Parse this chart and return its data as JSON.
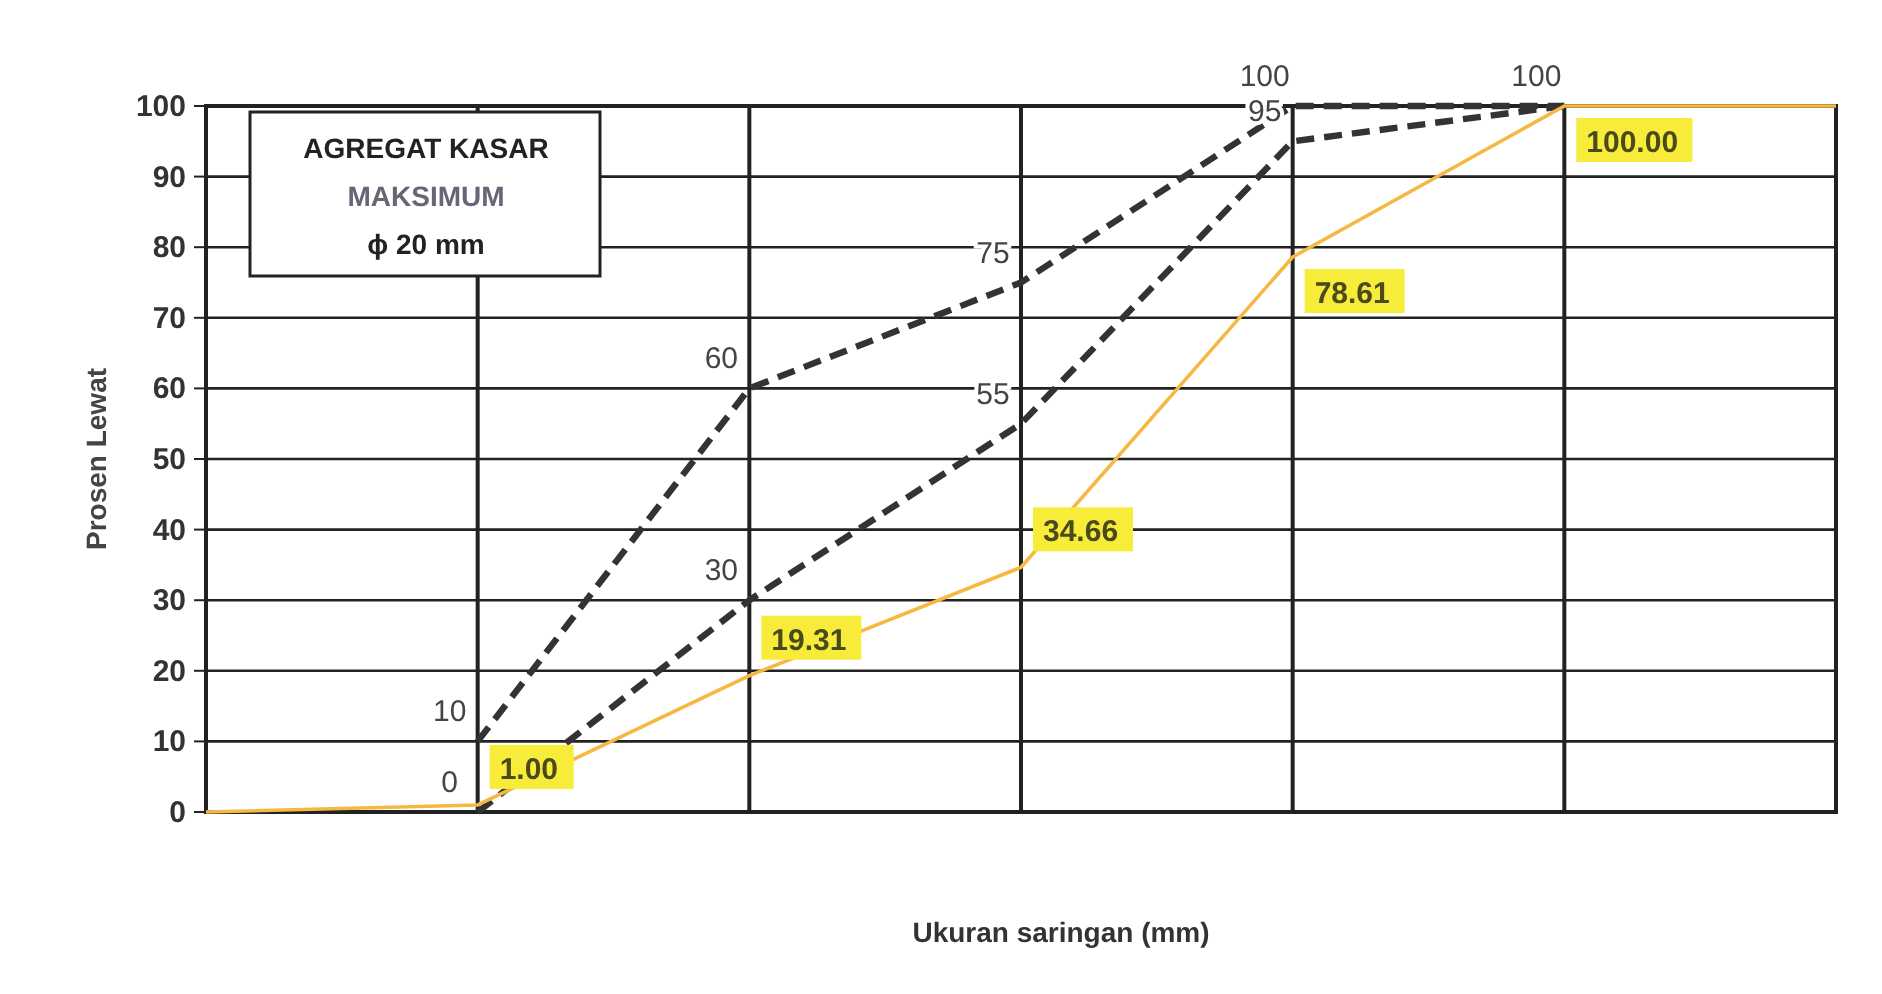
{
  "chart_data": {
    "type": "line",
    "xlabel": "Ukuran saringan (mm)",
    "ylabel": "Prosen Lewat",
    "annotations": [
      "AGREGAT KASAR",
      "MAKSIMUM",
      "ϕ 20 mm"
    ],
    "categories": [
      null,
      null,
      null,
      null,
      null,
      null,
      null
    ],
    "ylim": [
      0,
      100
    ],
    "yticks": [
      0,
      10,
      20,
      30,
      40,
      50,
      60,
      70,
      80,
      90,
      100
    ],
    "grid": true,
    "tick_labels": "y",
    "marker": "none",
    "series": [
      {
        "color": "#333333",
        "line_style": "dashed",
        "values": [
          null,
          10,
          60,
          75,
          100,
          100,
          null
        ],
        "value_labels": [
          null,
          "10",
          "60",
          "75",
          "100",
          "100",
          null
        ]
      },
      {
        "color": "#333333",
        "line_style": "dashed",
        "values": [
          null,
          0,
          30,
          55,
          95,
          100,
          null
        ],
        "value_labels": [
          null,
          "0",
          "30",
          "55",
          "95",
          null,
          null
        ]
      },
      {
        "color": "#f5b942",
        "line_style": "solid",
        "values": [
          0,
          1,
          19.31,
          34.66,
          78.61,
          100,
          100
        ],
        "value_labels": [
          null,
          "1.00",
          "19.31",
          "34.66",
          "78.61",
          "100.00",
          null
        ]
      }
    ]
  }
}
